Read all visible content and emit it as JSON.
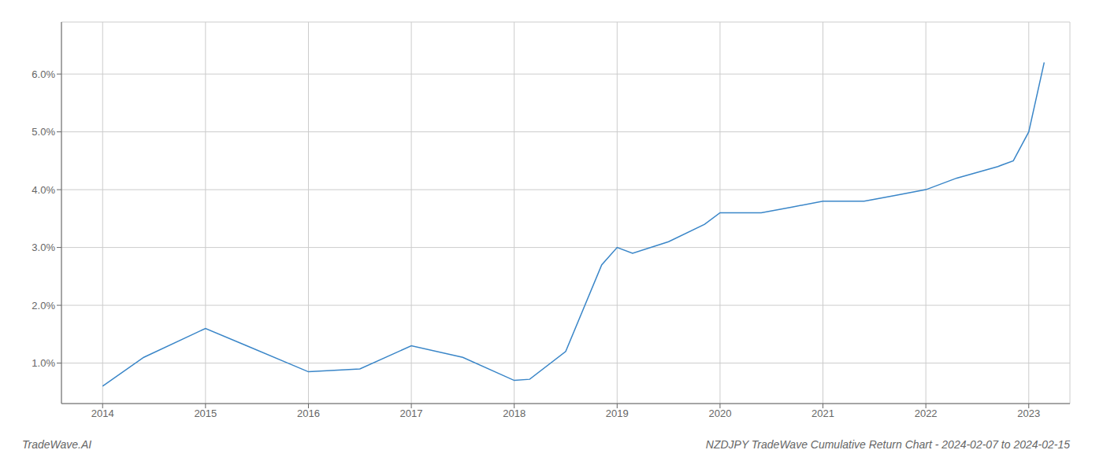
{
  "chart_data": {
    "type": "line",
    "title": "NZDJPY TradeWave Cumulative Return Chart - 2024-02-07 to 2024-02-15",
    "annotations": [
      {
        "text": "TradeWave.AI"
      }
    ],
    "x": [
      2014.0,
      2014.4,
      2015.0,
      2015.4,
      2016.0,
      2016.5,
      2017.0,
      2017.5,
      2018.0,
      2018.15,
      2018.5,
      2018.85,
      2019.0,
      2019.15,
      2019.5,
      2019.85,
      2020.0,
      2020.4,
      2020.7,
      2021.0,
      2021.4,
      2021.7,
      2022.0,
      2022.3,
      2022.7,
      2022.85,
      2023.0,
      2023.15
    ],
    "values": [
      0.006,
      0.011,
      0.016,
      0.013,
      0.0085,
      0.009,
      0.013,
      0.011,
      0.007,
      0.0072,
      0.012,
      0.027,
      0.03,
      0.029,
      0.031,
      0.034,
      0.036,
      0.036,
      0.037,
      0.038,
      0.038,
      0.039,
      0.04,
      0.042,
      0.044,
      0.045,
      0.05,
      0.062
    ],
    "color": "#3a86c8",
    "xlim": [
      2013.6,
      2023.4
    ],
    "ylim": [
      0.003,
      0.069
    ],
    "xticks": [
      2014,
      2015,
      2016,
      2017,
      2018,
      2019,
      2020,
      2021,
      2022,
      2023
    ],
    "yticks": [
      {
        "value": 0.01,
        "label": "1.0%"
      },
      {
        "value": 0.02,
        "label": "2.0%"
      },
      {
        "value": 0.03,
        "label": "3.0%"
      },
      {
        "value": 0.04,
        "label": "4.0%"
      },
      {
        "value": 0.05,
        "label": "5.0%"
      },
      {
        "value": 0.06,
        "label": "6.0%"
      }
    ],
    "grid": true
  }
}
